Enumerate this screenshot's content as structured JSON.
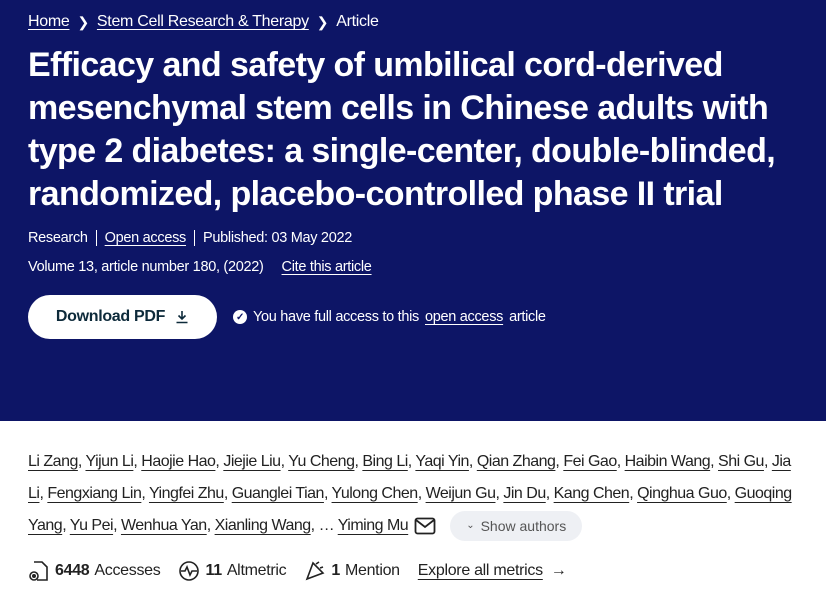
{
  "breadcrumb": {
    "items": [
      "Home",
      "Stem Cell Research & Therapy"
    ],
    "current": "Article"
  },
  "title": "Efficacy and safety of umbilical cord-derived mesenchymal stem cells in Chinese adults with type 2 diabetes: a single-center, double-blinded, randomized, placebo-controlled phase II trial",
  "meta": {
    "type": "Research",
    "access": "Open access",
    "published": "Published: 03 May 2022",
    "volume": "Volume 13, article number 180, (2022)",
    "cite": "Cite this article"
  },
  "actions": {
    "download": "Download PDF",
    "access_prefix": "You have full access to this",
    "access_link": "open access",
    "access_suffix": "article"
  },
  "authors": [
    "Li Zang",
    "Yijun Li",
    "Haojie Hao",
    "Jiejie Liu",
    "Yu Cheng",
    "Bing Li",
    "Yaqi Yin",
    "Qian Zhang",
    "Fei Gao",
    "Haibin Wang",
    "Shi Gu",
    "Jia Li",
    "Fengxiang Lin",
    "Yingfei Zhu",
    "Guanglei Tian",
    "Yulong Chen",
    "Weijun Gu",
    "Jin Du",
    "Kang Chen",
    "Qinghua Guo",
    "Guoqing Yang",
    "Yu Pei",
    "Wenhua Yan",
    "Xianling Wang"
  ],
  "last_author": "Yiming Mu",
  "ellipsis": "…",
  "show_authors": "Show authors",
  "metrics": {
    "accesses_count": "6448",
    "accesses_label": "Accesses",
    "altmetric_count": "11",
    "altmetric_label": "Altmetric",
    "mention_count": "1",
    "mention_label": "Mention",
    "explore": "Explore all metrics"
  },
  "colors": {
    "hero_bg": "#0d1566"
  }
}
